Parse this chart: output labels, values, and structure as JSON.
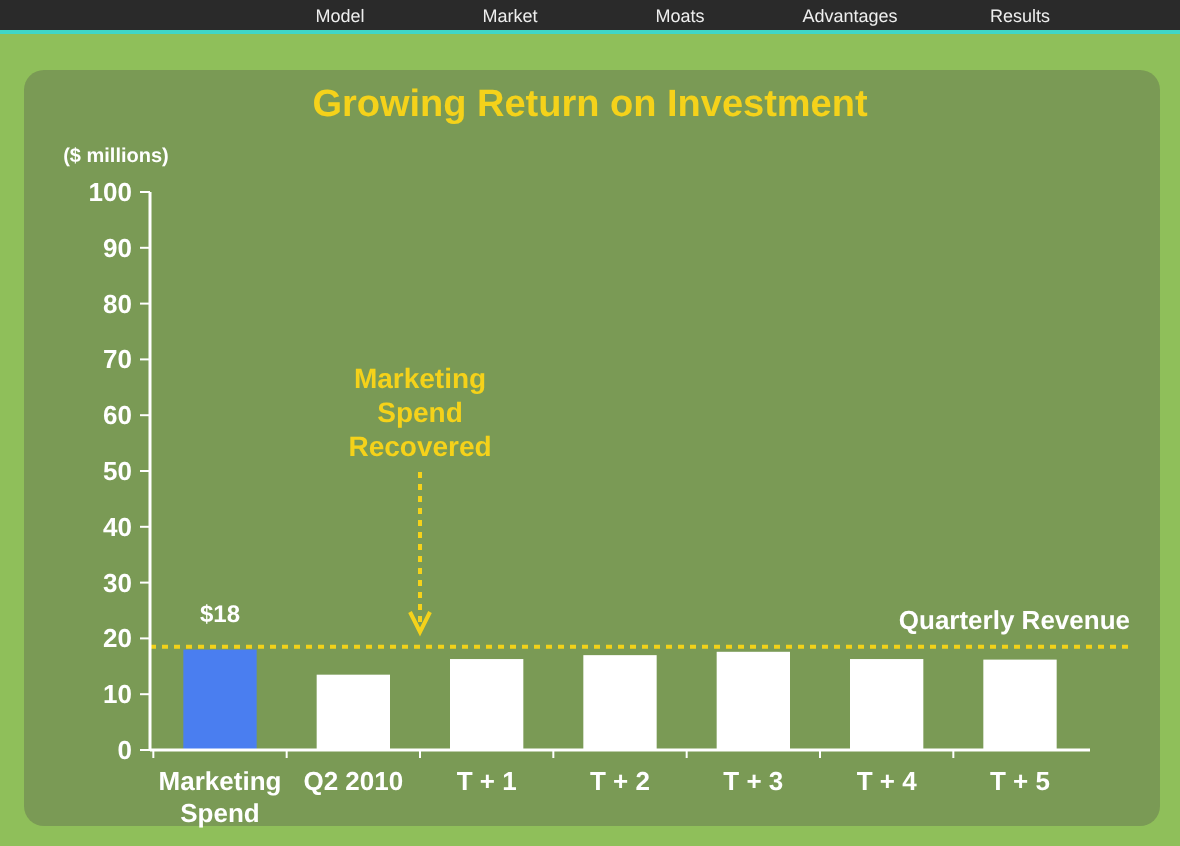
{
  "chart_data": {
    "type": "bar",
    "title": "Growing Return on Investment",
    "ylabel": "($ millions)",
    "categories": [
      "Marketing Spend",
      "Q2 2010",
      "T + 1",
      "T + 2",
      "T + 3",
      "T + 4",
      "T + 5"
    ],
    "values": [
      18,
      13.5,
      16.3,
      17,
      17.6,
      16.3,
      16.2
    ],
    "colors": [
      "#4a7ef0",
      "#ffffff",
      "#ffffff",
      "#ffffff",
      "#ffffff",
      "#ffffff",
      "#ffffff"
    ],
    "value_labels": [
      "$18",
      null,
      null,
      null,
      null,
      null,
      null
    ],
    "ylim": [
      0,
      100
    ],
    "yticks": [
      0,
      10,
      20,
      30,
      40,
      50,
      60,
      70,
      80,
      90,
      100
    ],
    "grid": false,
    "ref_lines": [
      {
        "axis": "y",
        "value": 18.5,
        "label": "Quarterly Revenue",
        "color": "#f2d21a",
        "line_style": "dotted"
      }
    ],
    "annotations": [
      "Marketing Spend Recovered",
      "Model",
      "Market",
      "Moats",
      "Advantages",
      "Results"
    ]
  }
}
